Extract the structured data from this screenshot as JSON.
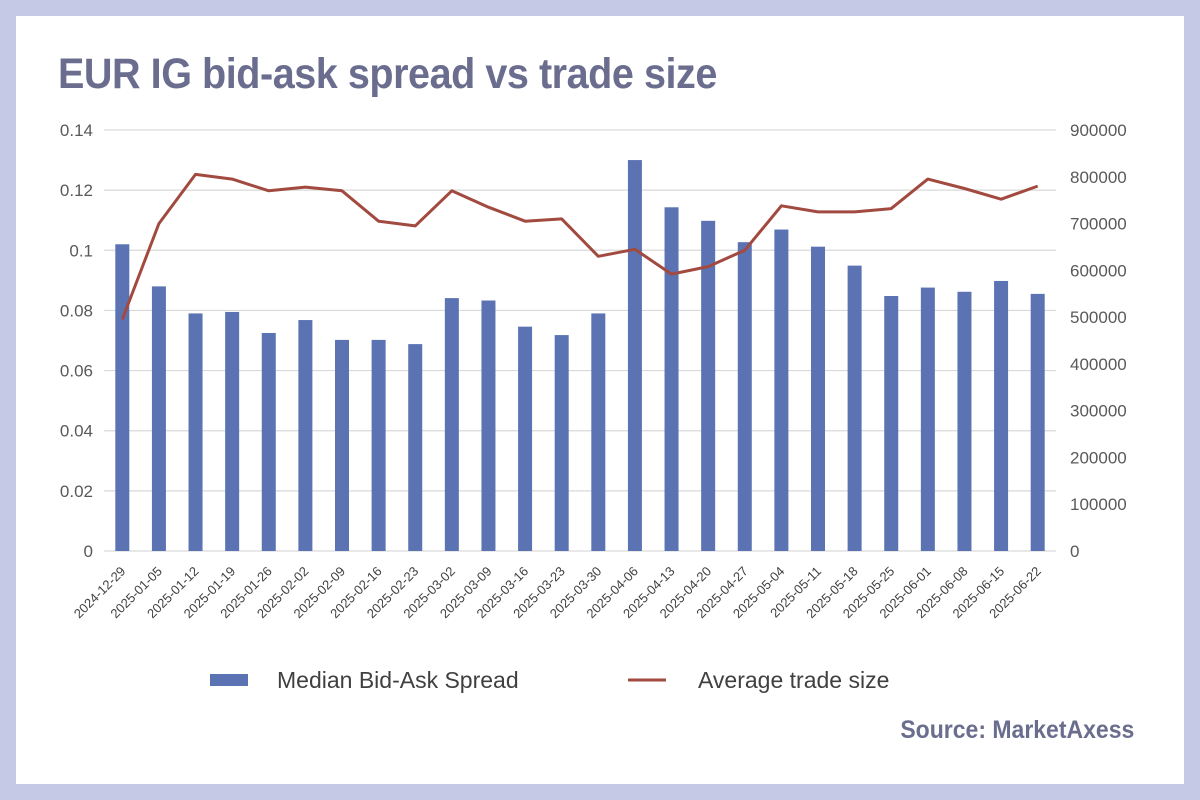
{
  "title": "EUR IG bid-ask spread vs trade size",
  "source": "Source: MarketAxess",
  "colors": {
    "background": "#c5c9e6",
    "bar": "#5b73b2",
    "line": "#a24a40",
    "grid": "#d9d9d9",
    "text": "#6a6d8e"
  },
  "chart_data": {
    "type": "bar",
    "title": "EUR IG bid-ask spread vs trade size",
    "categories": [
      "2024-12-29",
      "2025-01-05",
      "2025-01-12",
      "2025-01-19",
      "2025-01-26",
      "2025-02-02",
      "2025-02-09",
      "2025-02-16",
      "2025-02-23",
      "2025-03-02",
      "2025-03-09",
      "2025-03-16",
      "2025-03-23",
      "2025-03-30",
      "2025-04-06",
      "2025-04-13",
      "2025-04-20",
      "2025-04-27",
      "2025-05-04",
      "2025-05-11",
      "2025-05-18",
      "2025-05-25",
      "2025-06-01",
      "2025-06-08",
      "2025-06-15",
      "2025-06-22"
    ],
    "series": [
      {
        "name": "Median Bid-Ask Spread",
        "type": "bar",
        "axis": "left",
        "values": [
          0.102,
          0.088,
          0.079,
          0.0795,
          0.0725,
          0.0768,
          0.0702,
          0.0702,
          0.0688,
          0.0841,
          0.0833,
          0.0746,
          0.0718,
          0.079,
          0.13,
          0.1143,
          0.1098,
          0.1027,
          0.1069,
          0.1012,
          0.0949,
          0.0848,
          0.0876,
          0.0862,
          0.0898,
          0.0855
        ]
      },
      {
        "name": "Average trade size",
        "type": "line",
        "axis": "right",
        "values": [
          495000,
          700000,
          805000,
          795000,
          770000,
          778000,
          770000,
          705000,
          695000,
          770000,
          735000,
          705000,
          710000,
          630000,
          645000,
          592000,
          608000,
          643000,
          738000,
          725000,
          725000,
          732000,
          795000,
          775000,
          752000,
          780000
        ]
      }
    ],
    "y_left": {
      "min": 0,
      "max": 0.14,
      "ticks": [
        "0",
        "0.02",
        "0.04",
        "0.06",
        "0.08",
        "0.1",
        "0.12",
        "0.14"
      ]
    },
    "y_right": {
      "min": 0,
      "max": 900000,
      "ticks": [
        "0",
        "100000",
        "200000",
        "300000",
        "400000",
        "500000",
        "600000",
        "700000",
        "800000",
        "900000"
      ]
    },
    "grid": true,
    "legend_position": "bottom"
  }
}
